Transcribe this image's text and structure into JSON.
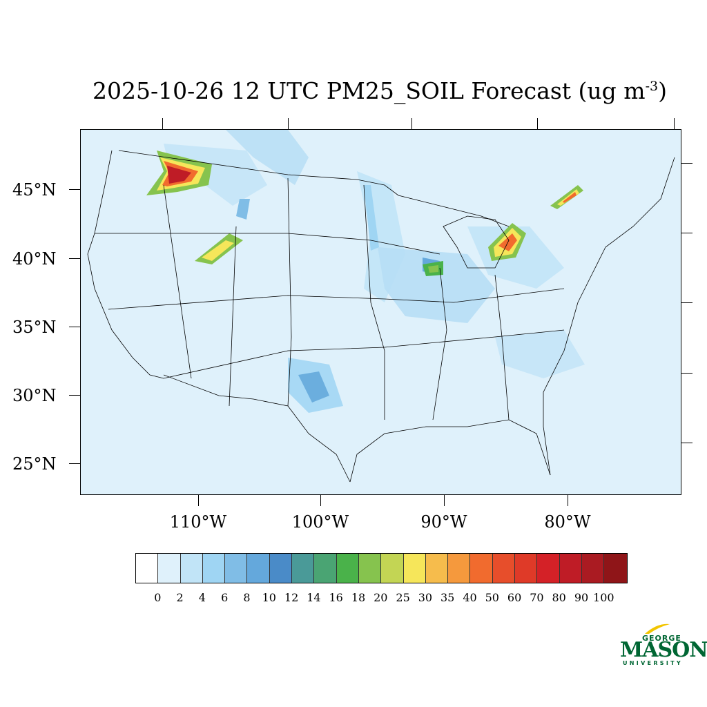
{
  "title": {
    "text": "2025-10-26 12 UTC PM25_SOIL Forecast (ug m",
    "superscript": "-3",
    "closing": ")"
  },
  "map": {
    "background_color": "#dff1fb",
    "lat_labels": [
      "45°N",
      "40°N",
      "35°N",
      "30°N",
      "25°N"
    ],
    "lon_labels": [
      "110°W",
      "100°W",
      "90°W",
      "80°W"
    ]
  },
  "colorbar": {
    "colors": [
      "#ffffff",
      "#dff1fb",
      "#c1e4f7",
      "#9fd5f3",
      "#80bde6",
      "#64a8dc",
      "#4a8bc8",
      "#4a9a98",
      "#4aa473",
      "#4ab24a",
      "#86c34e",
      "#c3d554",
      "#f6e65a",
      "#f6bc4c",
      "#f5993d",
      "#f16b2e",
      "#e74e2b",
      "#df3a28",
      "#d42127",
      "#bf1c26",
      "#aa1b22",
      "#8f1518"
    ],
    "labels": [
      "0",
      "2",
      "4",
      "6",
      "8",
      "10",
      "12",
      "14",
      "16",
      "18",
      "20",
      "25",
      "30",
      "35",
      "40",
      "50",
      "60",
      "70",
      "80",
      "90",
      "100"
    ]
  },
  "logo": {
    "line1": "GEORGE",
    "line2": "MASON",
    "line3": "UNIVERSITY",
    "color": "#006633",
    "accent": "#f2c500"
  }
}
